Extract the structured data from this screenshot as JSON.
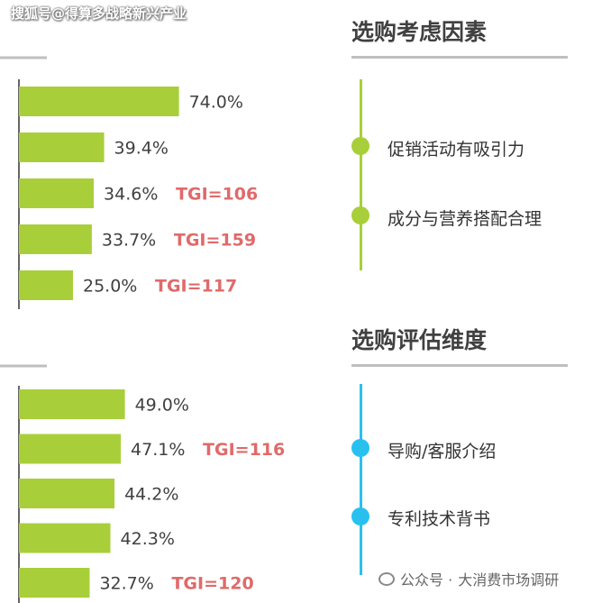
{
  "watermark": "搜狐号@得算多战略新兴产业",
  "colors": {
    "bar": "#a8cf3a",
    "tgi": "#e06a6a",
    "green_accent": "#a8cf3a",
    "blue_accent": "#29c0f0"
  },
  "panels": [
    {
      "title": "选购考虑因素",
      "items": [
        "促销活动有吸引力",
        "成分与营养搭配合理"
      ]
    },
    {
      "title": "选购评估维度",
      "items": [
        "导购/客服介绍",
        "专利技术背书"
      ]
    }
  ],
  "footer": {
    "prefix": "公众号 · ",
    "name": "大消费市场调研"
  },
  "chart_data": [
    {
      "type": "bar",
      "orientation": "horizontal",
      "values": [
        74.0,
        39.4,
        34.6,
        33.7,
        25.0
      ],
      "labels": [
        "74.0%",
        "39.4%",
        "34.6%",
        "33.7%",
        "25.0%"
      ],
      "tgi": [
        "",
        "",
        "TGI=106",
        "TGI=159",
        "TGI=117"
      ],
      "xlim": [
        0,
        100
      ]
    },
    {
      "type": "bar",
      "orientation": "horizontal",
      "values": [
        49.0,
        47.1,
        44.2,
        42.3,
        32.7
      ],
      "labels": [
        "49.0%",
        "47.1%",
        "44.2%",
        "42.3%",
        "32.7%"
      ],
      "tgi": [
        "",
        "TGI=116",
        "",
        "",
        "TGI=120"
      ],
      "xlim": [
        0,
        100
      ]
    }
  ]
}
